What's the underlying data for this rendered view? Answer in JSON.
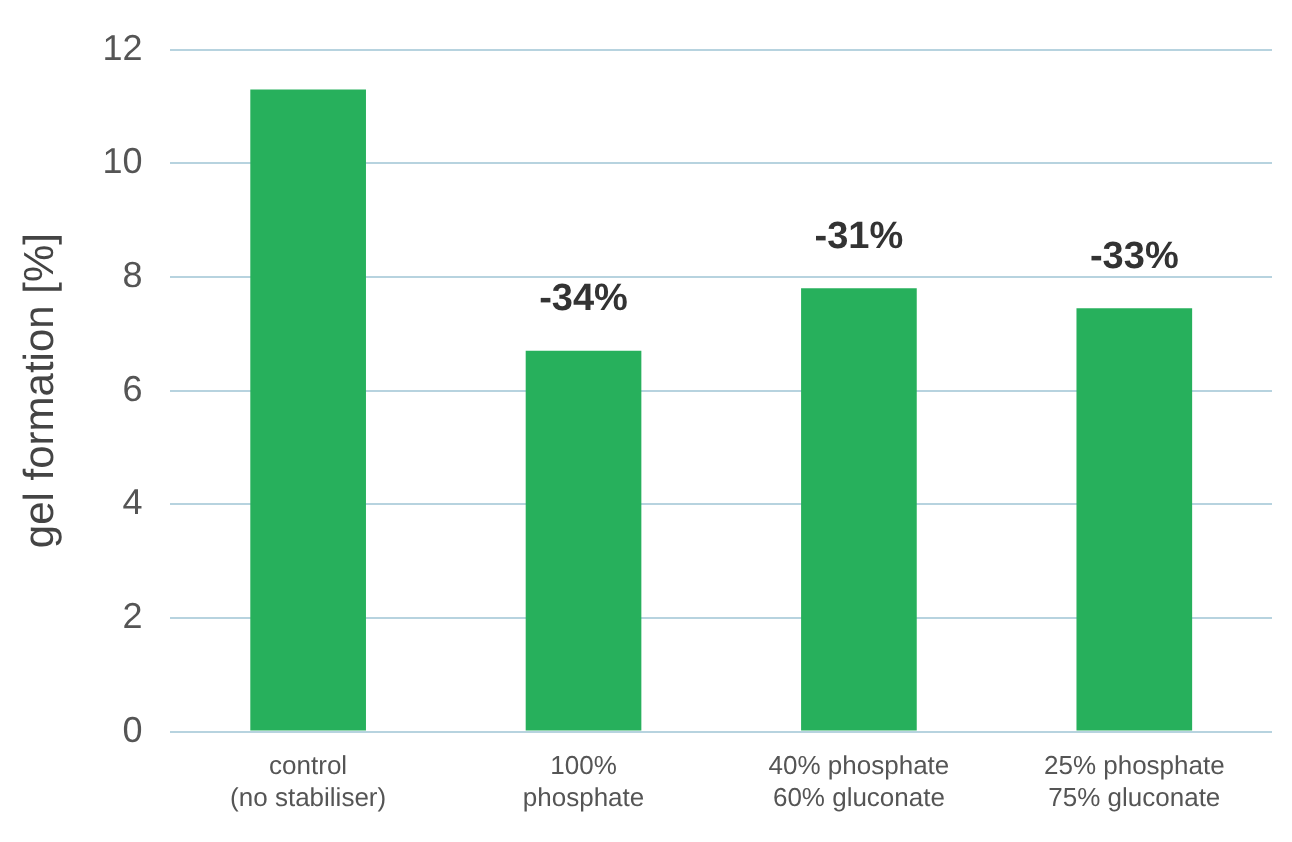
{
  "chart_data": {
    "type": "bar",
    "ylabel": "gel formation [%]",
    "categories": [
      "control\n(no stabiliser)",
      "100%\nphosphate",
      "40% phosphate\n60% gluconate",
      "25% phosphate\n75% gluconate"
    ],
    "values": [
      11.3,
      6.7,
      7.8,
      7.45
    ],
    "annotations": [
      {
        "text": "-34%",
        "x": "100%\nphosphate",
        "y": 6.7
      },
      {
        "text": "-31%",
        "x": "40% phosphate\n60% gluconate",
        "y": 7.8
      },
      {
        "text": "-33%",
        "x": "25% phosphate\n75% gluconate",
        "y": 7.45
      }
    ],
    "color": "#27b05c",
    "ylim": [
      0,
      12
    ],
    "yticks": [
      0,
      2,
      4,
      6,
      8,
      10,
      12
    ],
    "grid": "y",
    "legend": false
  }
}
